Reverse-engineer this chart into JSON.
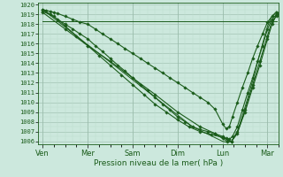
{
  "xlabel": "Pression niveau de la mer( hPa )",
  "bg_color": "#cce8dd",
  "grid_color_major": "#99bbaa",
  "grid_color_minor": "#bbddcc",
  "line_color": "#1a5c1a",
  "ylim": [
    1006,
    1020
  ],
  "yticks": [
    1006,
    1007,
    1008,
    1009,
    1010,
    1011,
    1012,
    1013,
    1014,
    1015,
    1016,
    1017,
    1018,
    1019,
    1020
  ],
  "day_labels": [
    "Ven",
    "Mer",
    "Sam",
    "Dim",
    "Lun",
    "Mar"
  ],
  "day_positions": [
    0,
    1,
    2,
    3,
    4,
    5
  ],
  "lines": [
    {
      "x": [
        0.0,
        5.2
      ],
      "y": [
        1018.3,
        1018.3
      ],
      "marker": null,
      "markersize": 0,
      "linewidth": 0.7
    },
    {
      "x": [
        0.0,
        0.08,
        0.17,
        0.25,
        0.33,
        0.5,
        0.67,
        0.83,
        1.0,
        1.17,
        1.33,
        1.5,
        1.67,
        1.83,
        2.0,
        2.17,
        2.33,
        2.5,
        2.67,
        2.83,
        3.0,
        3.17,
        3.33,
        3.5,
        3.67,
        3.83,
        4.0,
        4.08,
        4.15,
        4.22,
        4.33,
        4.44,
        4.56,
        4.67,
        4.78,
        4.89,
        5.0,
        5.1,
        5.2
      ],
      "y": [
        1019.5,
        1019.4,
        1019.3,
        1019.2,
        1019.1,
        1018.8,
        1018.5,
        1018.2,
        1018.0,
        1017.5,
        1017.0,
        1016.5,
        1016.0,
        1015.5,
        1015.0,
        1014.5,
        1014.0,
        1013.5,
        1013.0,
        1012.5,
        1012.0,
        1011.5,
        1011.0,
        1010.5,
        1010.0,
        1009.3,
        1007.8,
        1007.3,
        1007.5,
        1008.5,
        1010.0,
        1011.5,
        1013.0,
        1014.5,
        1015.8,
        1017.0,
        1018.2,
        1018.8,
        1019.2
      ],
      "marker": "D",
      "markersize": 1.8,
      "linewidth": 0.8
    },
    {
      "x": [
        0.0,
        0.17,
        0.33,
        0.5,
        0.67,
        0.83,
        1.0,
        1.17,
        1.33,
        1.5,
        1.67,
        1.83,
        2.0,
        2.17,
        2.33,
        2.5,
        2.67,
        2.83,
        3.0,
        3.17,
        3.33,
        3.5,
        3.67,
        3.83,
        4.0,
        4.08,
        4.15,
        4.22,
        4.33,
        4.44,
        4.56,
        4.67,
        4.78,
        4.89,
        5.0,
        5.1,
        5.2
      ],
      "y": [
        1019.5,
        1019.0,
        1018.5,
        1018.0,
        1017.5,
        1017.0,
        1016.5,
        1015.8,
        1015.2,
        1014.5,
        1013.8,
        1013.2,
        1012.5,
        1011.8,
        1011.2,
        1010.5,
        1009.8,
        1009.2,
        1008.5,
        1008.0,
        1007.5,
        1007.2,
        1007.0,
        1006.8,
        1006.5,
        1006.3,
        1006.2,
        1006.5,
        1007.5,
        1009.2,
        1011.0,
        1012.5,
        1014.2,
        1015.8,
        1017.5,
        1018.5,
        1019.0
      ],
      "marker": "D",
      "markersize": 1.8,
      "linewidth": 0.8
    },
    {
      "x": [
        0.0,
        0.25,
        0.5,
        0.75,
        1.0,
        1.25,
        1.5,
        1.75,
        2.0,
        2.25,
        2.5,
        2.75,
        3.0,
        3.25,
        3.5,
        3.75,
        4.0,
        4.1,
        4.2,
        4.33,
        4.5,
        4.67,
        4.83,
        5.0,
        5.1,
        5.2
      ],
      "y": [
        1019.3,
        1018.8,
        1017.8,
        1016.8,
        1015.8,
        1014.8,
        1013.8,
        1012.8,
        1011.8,
        1010.8,
        1009.8,
        1009.0,
        1008.2,
        1007.5,
        1007.0,
        1006.7,
        1006.4,
        1006.2,
        1006.0,
        1007.0,
        1009.0,
        1011.5,
        1013.8,
        1016.5,
        1018.0,
        1019.0
      ],
      "marker": "D",
      "markersize": 1.8,
      "linewidth": 0.8
    },
    {
      "x": [
        0.0,
        0.5,
        1.0,
        1.5,
        2.0,
        2.5,
        3.0,
        3.5,
        3.83,
        4.0,
        4.1,
        4.2,
        4.33,
        4.5,
        4.67,
        4.83,
        5.0,
        5.1,
        5.2
      ],
      "y": [
        1019.2,
        1017.5,
        1015.8,
        1014.2,
        1012.5,
        1010.8,
        1009.0,
        1007.5,
        1006.8,
        1006.3,
        1006.0,
        1006.0,
        1006.8,
        1009.2,
        1011.8,
        1014.2,
        1016.8,
        1018.3,
        1018.8
      ],
      "marker": "D",
      "markersize": 1.8,
      "linewidth": 0.8
    },
    {
      "x": [
        0.0,
        0.83,
        1.67,
        2.5,
        3.33,
        4.0,
        4.1,
        4.2,
        4.33,
        4.5,
        4.67,
        4.83,
        5.0,
        5.1,
        5.2
      ],
      "y": [
        1019.5,
        1016.5,
        1013.5,
        1010.5,
        1007.5,
        1006.0,
        1005.9,
        1006.0,
        1007.0,
        1009.5,
        1012.2,
        1015.0,
        1017.8,
        1018.8,
        1019.3
      ],
      "marker": null,
      "markersize": 0,
      "linewidth": 0.7
    }
  ]
}
